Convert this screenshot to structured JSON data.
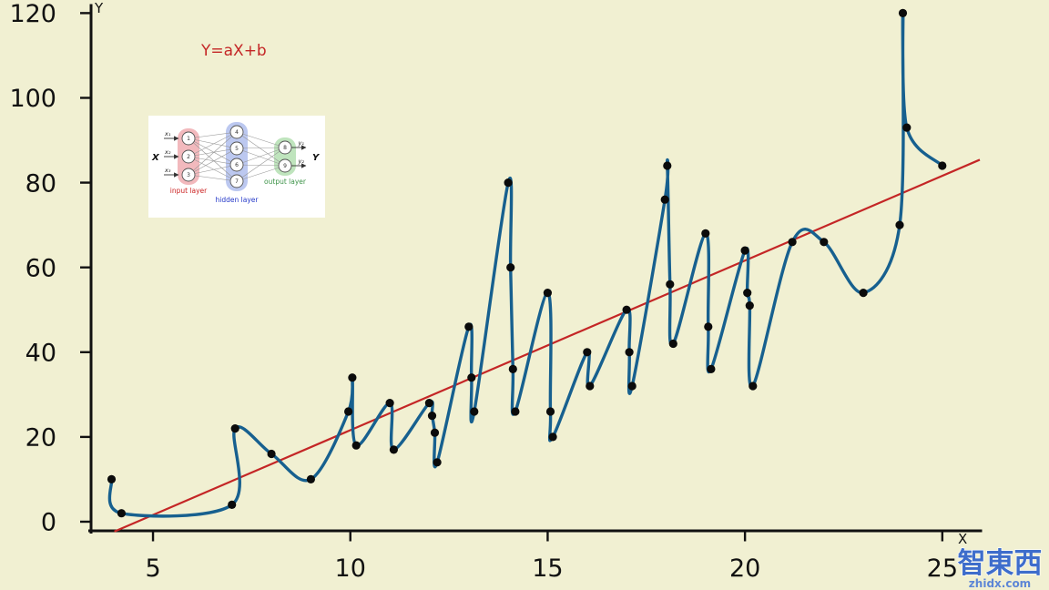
{
  "chart": {
    "background_color": "#f1f0d2",
    "formula_label": "Y=aX+b",
    "formula_color": "#c42626",
    "x_axis_label": "X",
    "y_axis_label": "Y"
  },
  "chart_data": {
    "type": "scatter",
    "title": "",
    "xlabel": "X",
    "ylabel": "Y",
    "xlim": [
      3.43,
      25.95
    ],
    "ylim": [
      -2.15,
      121.8
    ],
    "x_ticks": [
      5,
      10,
      15,
      20,
      25
    ],
    "y_ticks": [
      0,
      20,
      40,
      60,
      80,
      100,
      120
    ],
    "grid": false,
    "point_color": "#0b0b0b",
    "curve_follows_point_order": true,
    "points": [
      [
        3.95,
        10
      ],
      [
        4.2,
        2
      ],
      [
        7.0,
        4
      ],
      [
        7.08,
        22
      ],
      [
        8.0,
        16
      ],
      [
        9.0,
        10
      ],
      [
        9.95,
        26
      ],
      [
        10.05,
        34
      ],
      [
        10.15,
        18
      ],
      [
        11.0,
        28
      ],
      [
        11.1,
        17
      ],
      [
        12.0,
        28
      ],
      [
        12.07,
        25
      ],
      [
        12.14,
        21
      ],
      [
        12.2,
        14
      ],
      [
        13.0,
        46
      ],
      [
        13.07,
        34
      ],
      [
        13.14,
        26
      ],
      [
        14.0,
        80
      ],
      [
        14.06,
        60
      ],
      [
        14.12,
        36
      ],
      [
        14.18,
        26
      ],
      [
        15.0,
        54
      ],
      [
        15.07,
        26
      ],
      [
        15.13,
        20
      ],
      [
        16.0,
        40
      ],
      [
        16.07,
        32
      ],
      [
        17.0,
        50
      ],
      [
        17.07,
        40
      ],
      [
        17.14,
        32
      ],
      [
        17.97,
        76
      ],
      [
        18.03,
        84
      ],
      [
        18.1,
        56
      ],
      [
        18.18,
        42
      ],
      [
        19.0,
        68
      ],
      [
        19.07,
        46
      ],
      [
        19.14,
        36
      ],
      [
        20.0,
        64
      ],
      [
        20.06,
        54
      ],
      [
        20.12,
        51
      ],
      [
        20.2,
        32
      ],
      [
        21.2,
        66
      ],
      [
        22.0,
        66
      ],
      [
        23.0,
        54
      ],
      [
        23.92,
        70
      ],
      [
        24.0,
        120
      ],
      [
        24.1,
        93
      ],
      [
        25.0,
        84
      ]
    ],
    "regression_line": {
      "label": "Y=aX+b",
      "slope": 4.0,
      "intercept": -18.4,
      "color": "#c42626"
    },
    "overfit_curve": {
      "color": "#17608f",
      "stroke_width": 3.4
    }
  },
  "inset_diagram": {
    "x_label": "X",
    "y_label": "Y",
    "input_labels": [
      "x₁",
      "x₂",
      "x₃"
    ],
    "output_labels": [
      "y₁",
      "y₂"
    ],
    "layers": [
      {
        "label": "input layer",
        "label_color": "#cc2222",
        "band_color": "#f2b9bd",
        "nodes": [
          "1",
          "2",
          "3"
        ]
      },
      {
        "label": "hidden layer",
        "label_color": "#2438c8",
        "band_color": "#bcc8f0",
        "nodes": [
          "4",
          "5",
          "6",
          "7"
        ]
      },
      {
        "label": "output layer",
        "label_color": "#3c9348",
        "band_color": "#bfe4bd",
        "nodes": [
          "8",
          "9"
        ]
      }
    ]
  },
  "watermark": {
    "text": "智東西",
    "domain": "zhidx.com",
    "color": "#3e6dcb"
  }
}
